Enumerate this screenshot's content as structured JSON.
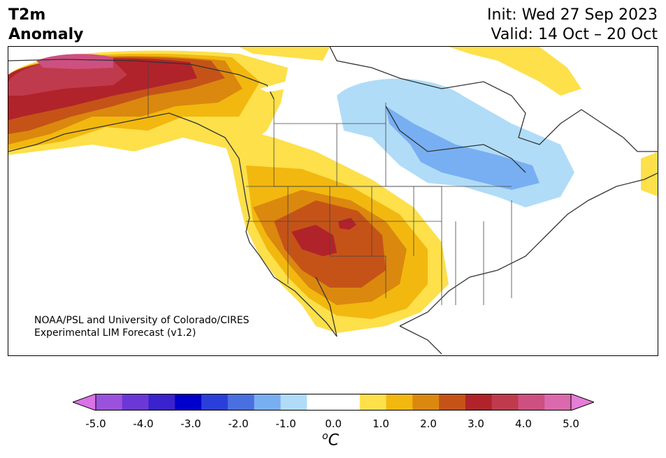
{
  "header": {
    "title_line1": "T2m",
    "title_line2": "Anomaly",
    "init": "Init: Wed 27 Sep 2023",
    "valid": "Valid: 14 Oct – 20 Oct"
  },
  "credit": {
    "line1": "NOAA/PSL and University of Colorado/CIRES",
    "line2": "Experimental LIM Forecast (v1.2)"
  },
  "colorbar": {
    "tick_labels": [
      "-5.0",
      "-4.0",
      "-3.0",
      "-2.0",
      "-1.0",
      "0.0",
      "1.0",
      "2.0",
      "3.0",
      "4.0",
      "5.0"
    ],
    "unit_sup": "o",
    "unit": "C",
    "colors": [
      "#d973e6",
      "#9a52dd",
      "#6b37d6",
      "#3a22cc",
      "#0000cc",
      "#2a3fd9",
      "#4a6fe0",
      "#78aff2",
      "#b0dcf8",
      "#ffffff",
      "#ffffff",
      "#fde04a",
      "#f2b80f",
      "#db880f",
      "#c55318",
      "#b1232a",
      "#c03a4d",
      "#cd5080",
      "#db69ad",
      "#e57ed6"
    ]
  },
  "map": {
    "region": "North America",
    "warm_colors": {
      "light_yellow": "#fde04a",
      "yellow": "#f2b80f",
      "orange": "#db880f",
      "dark_orange": "#c55318",
      "red": "#b1232a",
      "magenta": "#c03a4d",
      "pink": "#cd5080"
    },
    "cold_colors": {
      "light_blue": "#b0dcf8",
      "blue": "#78aff2"
    },
    "coast_color": "#333333"
  }
}
